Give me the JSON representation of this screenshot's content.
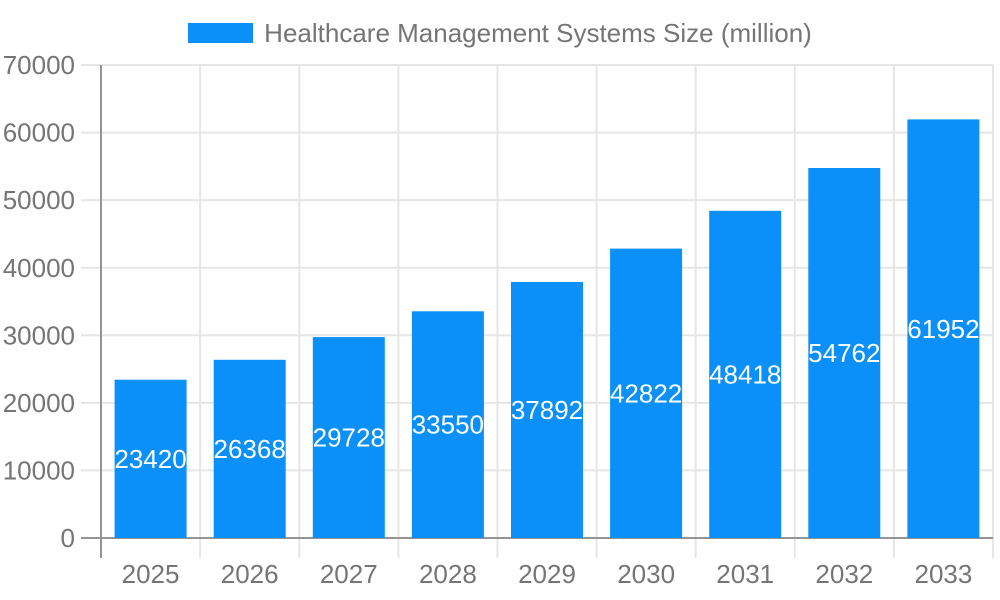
{
  "chart_data": {
    "type": "bar",
    "title": "Healthcare Management Systems Size (million)",
    "legend_label": "Healthcare Management Systems Size (million)",
    "categories": [
      "2025",
      "2026",
      "2027",
      "2028",
      "2029",
      "2030",
      "2031",
      "2032",
      "2033"
    ],
    "series": [
      {
        "name": "Healthcare Management Systems Size (million)",
        "values": [
          23420,
          26368,
          29728,
          33550,
          37892,
          42822,
          48418,
          54762,
          61952
        ]
      }
    ],
    "xlabel": "",
    "ylabel": "",
    "ylim": [
      0,
      70000
    ],
    "ytick_step": 10000,
    "yticks": [
      0,
      10000,
      20000,
      30000,
      40000,
      50000,
      60000,
      70000
    ],
    "grid": true,
    "legend_position": "top-center",
    "value_labels": "inside-center",
    "style": {
      "bar_color": "#0a90f8",
      "grid_color": "#e6e6e6",
      "axis_color": "#949494",
      "tick_label_color": "#757575",
      "legend_text_color": "#757575",
      "value_label_color": "#ffffff",
      "background": "#ffffff"
    }
  }
}
